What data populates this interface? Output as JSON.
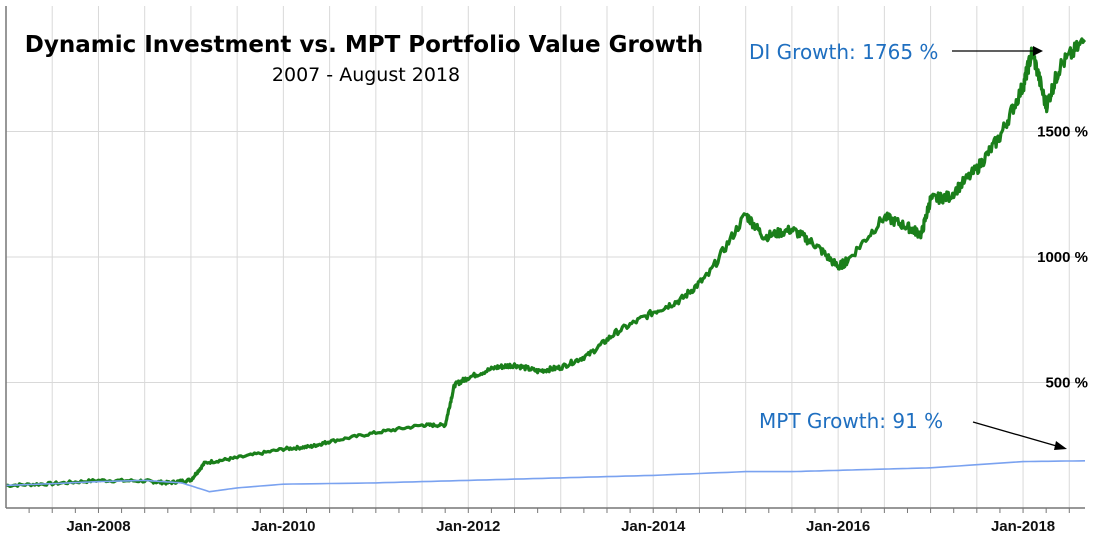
{
  "chart_data": {
    "type": "line",
    "title": "Dynamic Investment vs. MPT Portfolio Value Growth",
    "subtitle": "2007 - August 2018",
    "xlabel": "",
    "ylabel": "",
    "x_tick_labels": [
      "Jan-2008",
      "Jan-2010",
      "Jan-2012",
      "Jan-2014",
      "Jan-2016",
      "Jan-2018"
    ],
    "y_tick_labels": [
      "500 %",
      "1000 %",
      "1500 %"
    ],
    "y_ticks": [
      500,
      1000,
      1500
    ],
    "xlim": [
      2007.0,
      2018.67
    ],
    "ylim": [
      0,
      2000
    ],
    "grid": true,
    "colors": {
      "di": "#1a7f1a",
      "mpt": "#7aa2f0",
      "annotation": "#1f6fc0",
      "grid": "#d9d9d9"
    },
    "series": [
      {
        "key": "di",
        "x": [
          2007.0,
          2007.5,
          2008.0,
          2008.5,
          2008.75,
          2009.0,
          2009.15,
          2009.5,
          2010.0,
          2010.3,
          2010.5,
          2011.0,
          2011.5,
          2011.75,
          2011.85,
          2012.0,
          2012.3,
          2012.5,
          2012.75,
          2013.0,
          2013.3,
          2013.6,
          2014.0,
          2014.3,
          2014.6,
          2015.0,
          2015.2,
          2015.5,
          2015.75,
          2016.0,
          2016.1,
          2016.5,
          2016.75,
          2016.9,
          2017.0,
          2017.2,
          2017.5,
          2017.75,
          2018.0,
          2018.1,
          2018.25,
          2018.4,
          2018.67
        ],
        "values": [
          90,
          97,
          110,
          108,
          100,
          112,
          180,
          200,
          235,
          245,
          265,
          300,
          330,
          330,
          490,
          520,
          560,
          570,
          545,
          560,
          610,
          700,
          780,
          830,
          930,
          1170,
          1080,
          1110,
          1050,
          960,
          985,
          1160,
          1120,
          1090,
          1230,
          1240,
          1350,
          1480,
          1680,
          1820,
          1600,
          1760,
          1865
        ]
      },
      {
        "key": "mpt",
        "x": [
          2007.0,
          2007.5,
          2008.0,
          2008.5,
          2008.9,
          2009.2,
          2009.5,
          2010.0,
          2011.0,
          2012.0,
          2013.0,
          2014.0,
          2015.0,
          2015.5,
          2016.0,
          2016.5,
          2017.0,
          2018.0,
          2018.67
        ],
        "values": [
          90,
          97,
          105,
          110,
          100,
          65,
          80,
          95,
          100,
          110,
          120,
          130,
          145,
          145,
          150,
          155,
          160,
          185,
          188
        ]
      }
    ],
    "annotations": [
      {
        "text": "DI Growth: 1765 %"
      },
      {
        "text": "MPT Growth: 91 %"
      }
    ]
  }
}
